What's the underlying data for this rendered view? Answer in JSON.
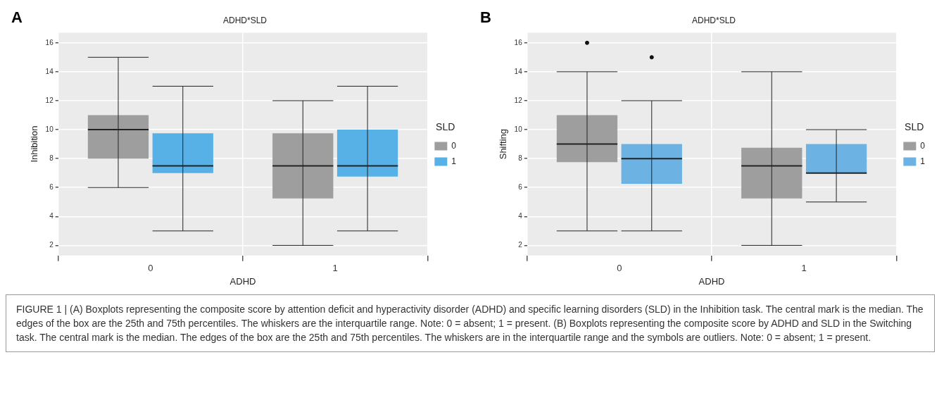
{
  "chart_data": [
    {
      "type": "box",
      "title": "ADHD*SLD",
      "xlabel": "ADHD",
      "ylabel": "Inhibition",
      "legend_title": "SLD",
      "categories": [
        "0",
        "1"
      ],
      "series": [
        {
          "name": "0",
          "color": "#9e9e9e",
          "boxes": [
            {
              "low": 6,
              "q1": 8,
              "median": 10,
              "q3": 11,
              "high": 15
            },
            {
              "low": 2,
              "q1": 5.25,
              "median": 7.5,
              "q3": 9.75,
              "high": 12
            }
          ]
        },
        {
          "name": "1",
          "color": "#57b1e6",
          "boxes": [
            {
              "low": 3,
              "q1": 7,
              "median": 7.5,
              "q3": 9.75,
              "high": 13
            },
            {
              "low": 3,
              "q1": 6.75,
              "median": 7.5,
              "q3": 10,
              "high": 13
            }
          ]
        }
      ],
      "ylim": [
        1.3,
        16.7
      ],
      "yticks": [
        2,
        4,
        6,
        8,
        10,
        12,
        14,
        16
      ],
      "grid": true,
      "legend": "right",
      "annotations": [
        "A"
      ]
    },
    {
      "type": "box",
      "title": "ADHD*SLD",
      "xlabel": "ADHD",
      "ylabel": "Shifting",
      "legend_title": "SLD",
      "categories": [
        "0",
        "1"
      ],
      "series": [
        {
          "name": "0",
          "color": "#9e9e9e",
          "boxes": [
            {
              "low": 3,
              "q1": 7.75,
              "median": 9,
              "q3": 11,
              "high": 14,
              "outliers": [
                16
              ]
            },
            {
              "low": 2,
              "q1": 5.25,
              "median": 7.5,
              "q3": 8.75,
              "high": 14
            }
          ]
        },
        {
          "name": "1",
          "color": "#6cb3e3",
          "boxes": [
            {
              "low": 3,
              "q1": 6.25,
              "median": 8,
              "q3": 9,
              "high": 12,
              "outliers": [
                15
              ]
            },
            {
              "low": 5,
              "q1": 7,
              "median": 7,
              "q3": 9,
              "high": 10
            }
          ]
        }
      ],
      "ylim": [
        1.3,
        16.7
      ],
      "yticks": [
        2,
        4,
        6,
        8,
        10,
        12,
        14,
        16
      ],
      "grid": true,
      "legend": "right",
      "annotations": [
        "B",
        "FIGURE 1 | (A) Boxplots representing the composite score by attention deficit and hyperactivity disorder (ADHD) and specific learning disorders (SLD) in the Inhibition task. The central mark is the median. The edges of the box are the 25th and 75th percentiles. The whiskers are the interquartile range. Note: 0 = absent; 1 = present. (B) Boxplots representing the composite score by ADHD and SLD in the Switching task. The central mark is the median. The edges of the box are the 25th and 75th percentiles. The whiskers are in the interquartile range and the symbols are outliers. Note: 0 = absent; 1 = present."
      ]
    }
  ]
}
